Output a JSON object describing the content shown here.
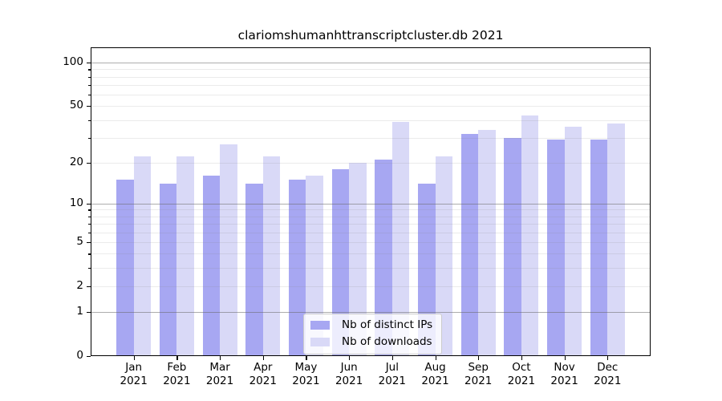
{
  "figure": {
    "title": "clariomshumanhttranscriptcluster.db 2021"
  },
  "chart_data": {
    "type": "bar",
    "title": "clariomshumanhttranscriptcluster.db 2021",
    "x": {
      "categories": [
        "Jan",
        "Feb",
        "Mar",
        "Apr",
        "May",
        "Jun",
        "Jul",
        "Aug",
        "Sep",
        "Oct",
        "Nov",
        "Dec"
      ],
      "year": "2021"
    },
    "series": [
      {
        "name": "Nb of distinct IPs",
        "color": "#a7a7f2",
        "values": [
          15,
          14,
          16,
          14,
          15,
          18,
          21,
          14,
          32,
          30,
          29,
          29
        ]
      },
      {
        "name": "Nb of downloads",
        "color": "#d9d9f7",
        "values": [
          22,
          22,
          27,
          22,
          16,
          20,
          39,
          22,
          34,
          43,
          36,
          38
        ]
      }
    ],
    "y_axis": {
      "scale": "log1p",
      "labeled_ticks": [
        0,
        1,
        2,
        5,
        10,
        20,
        50,
        100
      ],
      "major_grid_values": [
        1,
        10,
        100
      ],
      "minor_grid_values": [
        2,
        3,
        4,
        5,
        6,
        7,
        8,
        9,
        20,
        30,
        40,
        50,
        60,
        70,
        80,
        90
      ],
      "top_value": 127.5
    },
    "legend": {
      "items": [
        "Nb of distinct IPs",
        "Nb of downloads"
      ],
      "location": "lower center"
    },
    "colors": {
      "major_grid": "rgba(105,105,105,0.55)",
      "minor_grid": "rgba(130,130,130,0.16)",
      "spine": "#000000",
      "background": "#ffffff"
    }
  }
}
